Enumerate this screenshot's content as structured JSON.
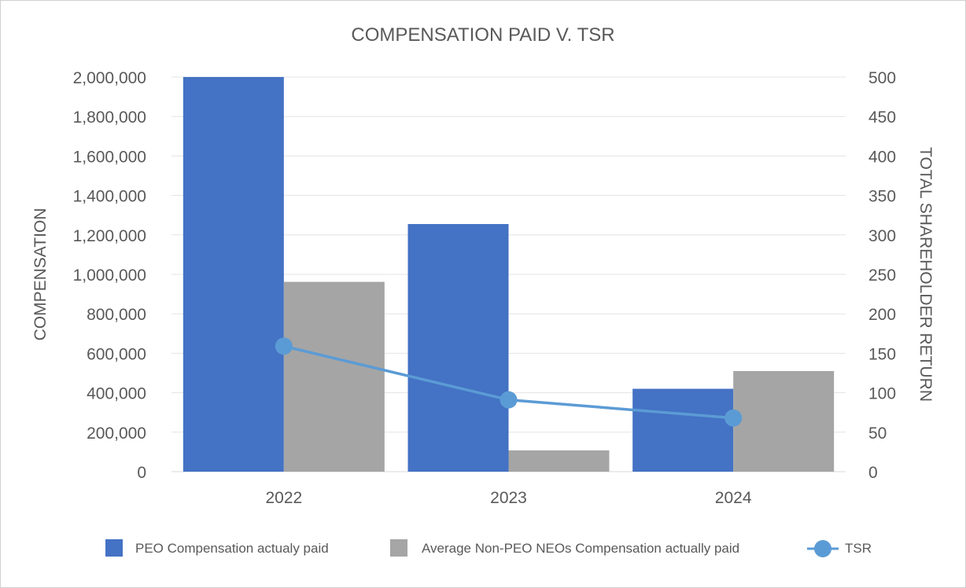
{
  "chart_data": {
    "type": "bar",
    "title": "COMPENSATION PAID V. TSR",
    "categories": [
      "2022",
      "2023",
      "2024"
    ],
    "series": [
      {
        "name": "PEO Compensation actualy paid",
        "kind": "bar",
        "axis": "left",
        "color": "#4472c4",
        "values": [
          2000000,
          1255000,
          420000
        ]
      },
      {
        "name": "Average Non-PEO NEOs Compensation actually paid",
        "kind": "bar",
        "axis": "left",
        "color": "#a5a5a5",
        "values": [
          962000,
          108000,
          510000
        ]
      },
      {
        "name": "TSR",
        "kind": "line",
        "axis": "right",
        "color": "#5b9bd5",
        "values": [
          159,
          91,
          68
        ]
      }
    ],
    "ylabel": "COMPENSATION",
    "y2label": "TOTAL SHAREHOLDER RETURN",
    "ylim": [
      0,
      2000000
    ],
    "y2lim": [
      0,
      500
    ],
    "yticks": [
      "0",
      "200,000",
      "400,000",
      "600,000",
      "800,000",
      "1,000,000",
      "1,200,000",
      "1,400,000",
      "1,600,000",
      "1,800,000",
      "2,000,000"
    ],
    "y2ticks": [
      "0",
      "50",
      "100",
      "150",
      "200",
      "250",
      "300",
      "350",
      "400",
      "450",
      "500"
    ],
    "grid": true,
    "legend_position": "bottom"
  }
}
